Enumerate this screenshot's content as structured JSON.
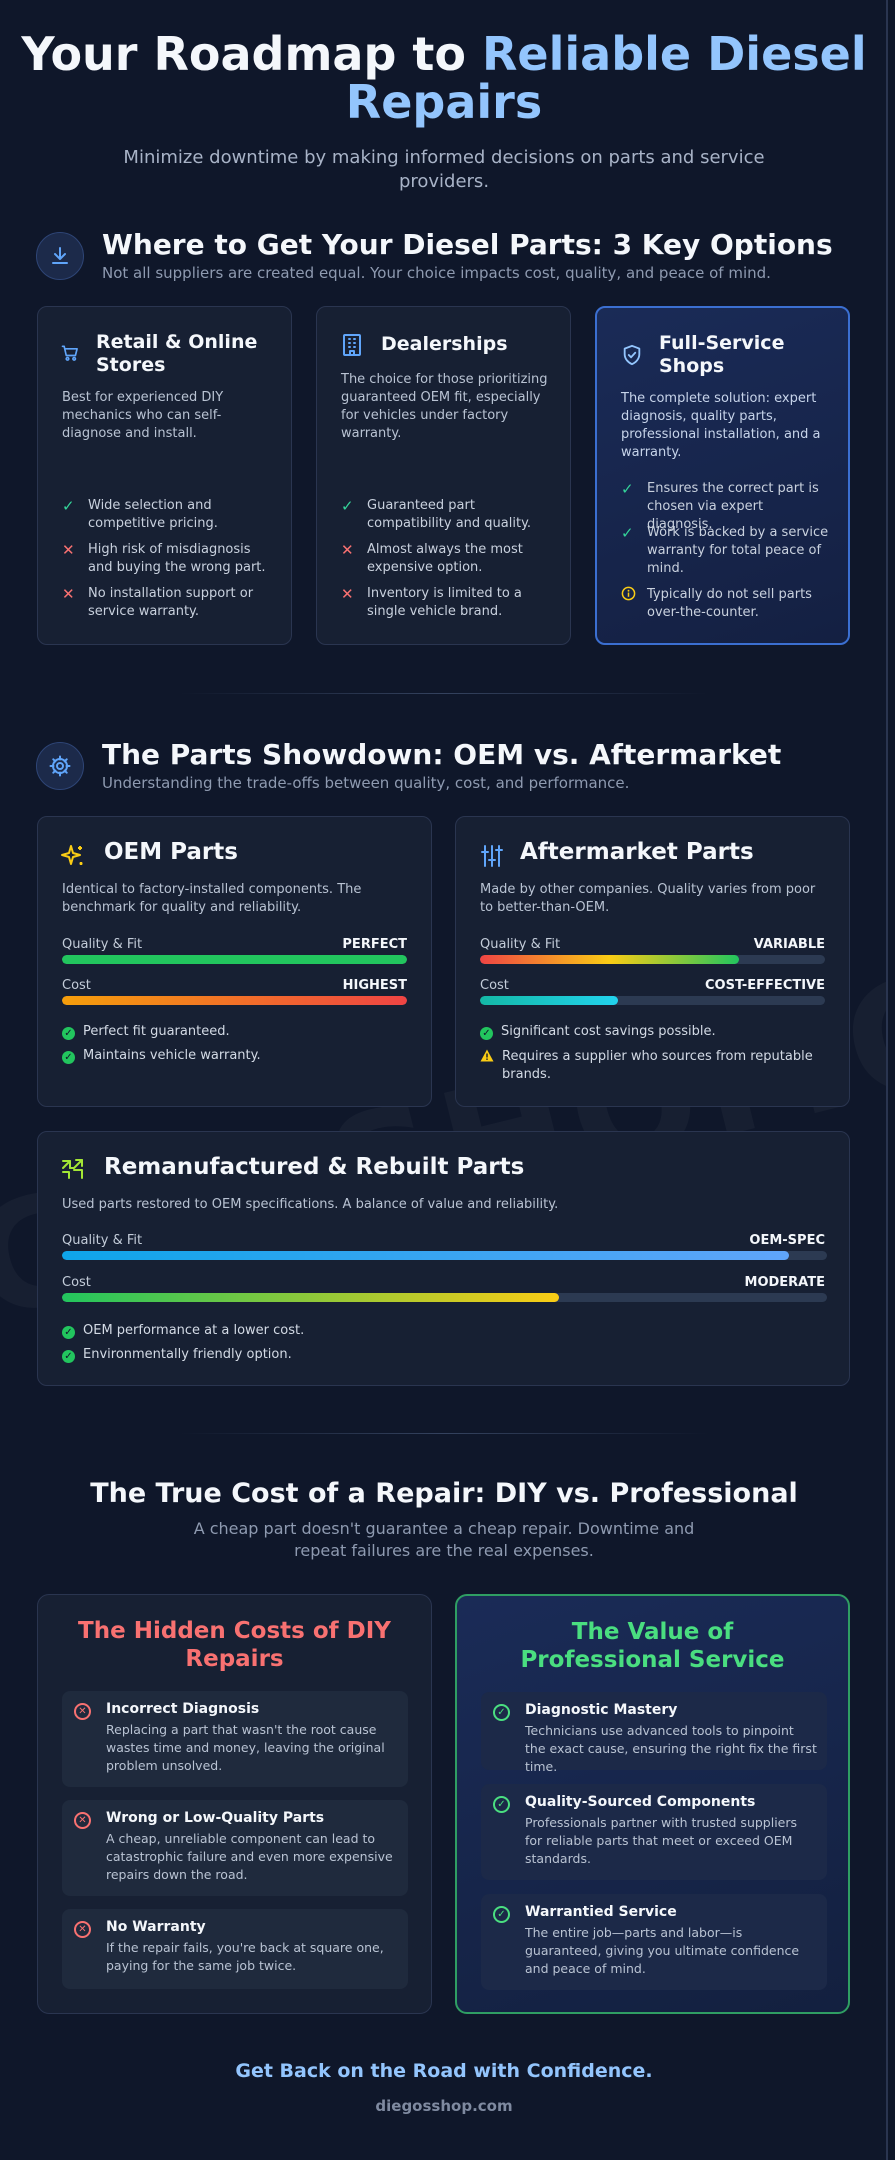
{
  "hero": {
    "title_part1": "Your Roadmap to ",
    "title_accent": "Reliable Diesel",
    "title_part2": "Repairs",
    "subtitle": "Minimize downtime by making informed decisions on parts and service providers."
  },
  "watermark": "GOSSHOP.C",
  "section1": {
    "title": "Where to Get Your Diesel Parts: 3 Key Options",
    "subtitle": "Not all suppliers are created equal. Your choice impacts cost, quality, and peace of mind.",
    "icon": "download-icon",
    "cards": [
      {
        "title": "Retail & Online Stores",
        "icon": "cart-icon",
        "description": "Best for experienced DIY mechanics who can self-diagnose and install.",
        "features": [
          {
            "type": "pro",
            "text": "Wide selection and competitive pricing."
          },
          {
            "type": "con",
            "text": "High risk of misdiagnosis and buying the wrong part."
          },
          {
            "type": "con",
            "text": "No installation support or service warranty."
          }
        ]
      },
      {
        "title": "Dealerships",
        "icon": "building-icon",
        "description": "The choice for those prioritizing guaranteed OEM fit, especially for vehicles under factory warranty.",
        "features": [
          {
            "type": "pro",
            "text": "Guaranteed part compatibility and quality."
          },
          {
            "type": "con",
            "text": "Almost always the most expensive option."
          },
          {
            "type": "con",
            "text": "Inventory is limited to a single vehicle brand."
          }
        ]
      },
      {
        "title": "Full-Service Shops",
        "icon": "shield-check-icon",
        "description": "The complete solution: expert diagnosis, quality parts, professional installation, and a warranty.",
        "features": [
          {
            "type": "pro",
            "text": "Ensures the correct part is chosen via expert diagnosis."
          },
          {
            "type": "pro",
            "text": "Work is backed by a service warranty for total peace of mind."
          },
          {
            "type": "info",
            "text": "Typically do not sell parts over-the-counter."
          }
        ]
      }
    ]
  },
  "section2": {
    "title": "The Parts Showdown: OEM vs. Aftermarket",
    "subtitle": "Understanding the trade-offs between quality, cost, and performance.",
    "icon": "gear-icon",
    "oem": {
      "title": "OEM Parts",
      "icon": "sparkle-icon",
      "description": "Identical to factory-installed components. The benchmark for quality and reliability.",
      "quality_label": "Quality & Fit",
      "quality_value": "PERFECT",
      "quality_level": 1.0,
      "cost_label": "Cost",
      "cost_value": "HIGHEST",
      "cost_level": 1.0,
      "features": [
        "Perfect fit guaranteed.",
        "Maintains vehicle warranty."
      ]
    },
    "aftermarket": {
      "title": "Aftermarket Parts",
      "icon": "sliders-icon",
      "description": "Made by other companies. Quality varies from poor to better-than-OEM.",
      "quality_label": "Quality & Fit",
      "quality_value": "VARIABLE",
      "quality_level": 0.75,
      "cost_label": "Cost",
      "cost_value": "COST-EFFECTIVE",
      "cost_level": 0.4,
      "features": [
        {
          "type": "pro",
          "text": "Significant cost savings possible."
        },
        {
          "type": "warn",
          "text": "Requires a supplier who sources from reputable brands."
        }
      ]
    },
    "reman": {
      "title": "Remanufactured & Rebuilt Parts",
      "icon": "recycle-icon",
      "description": "Used parts restored to OEM specifications. A balance of value and reliability.",
      "quality_label": "Quality & Fit",
      "quality_value": "OEM-SPEC",
      "quality_level": 0.95,
      "cost_label": "Cost",
      "cost_value": "MODERATE",
      "cost_level": 0.65,
      "features": [
        "OEM performance at a lower cost.",
        "Environmentally friendly option."
      ]
    }
  },
  "section3": {
    "title": "The True Cost of a Repair: DIY vs. Professional",
    "subtitle": "A cheap part doesn't guarantee a cheap repair. Downtime and repeat failures are the real expenses.",
    "diy": {
      "title": "The Hidden Costs of DIY Repairs",
      "color": "#f87171",
      "items": [
        {
          "title": "Incorrect Diagnosis",
          "text": "Replacing a part that wasn't the root cause wastes time and money, leaving the original problem unsolved."
        },
        {
          "title": "Wrong or Low-Quality Parts",
          "text": "A cheap, unreliable component can lead to catastrophic failure and even more expensive repairs down the road."
        },
        {
          "title": "No Warranty",
          "text": "If the repair fails, you're back at square one, paying for the same job twice."
        }
      ]
    },
    "pro": {
      "title": "The Value of Professional Service",
      "color": "#4ade80",
      "items": [
        {
          "title": "Diagnostic Mastery",
          "text": "Technicians use advanced tools to pinpoint the exact cause, ensuring the right fix the first time."
        },
        {
          "title": "Quality-Sourced Components",
          "text": "Professionals partner with trusted suppliers for reliable parts that meet or exceed OEM standards."
        },
        {
          "title": "Warrantied Service",
          "text": "The entire job—parts and labor—is guaranteed, giving you ultimate confidence and peace of mind."
        }
      ]
    }
  },
  "footer": {
    "cta": "Get Back on the Road with Confidence.",
    "site": "diegosshop.com"
  }
}
